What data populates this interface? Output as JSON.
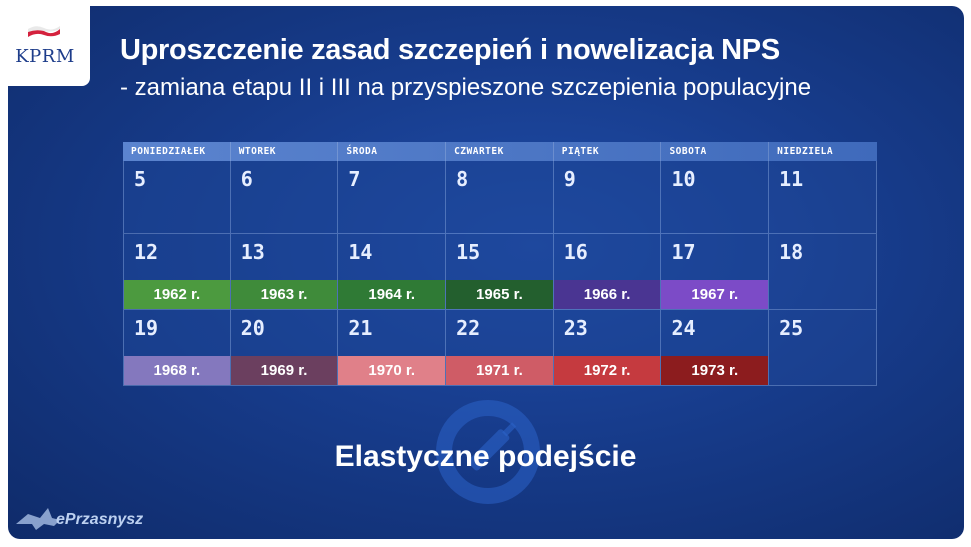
{
  "header": {
    "logo_text": "KPRM",
    "title": "Uproszczenie zasad szczepień i nowelizacja NPS",
    "subtitle": "- zamiana etapu II i III na przyspieszone szczepienia populacyjne"
  },
  "calendar": {
    "weekdays": [
      "PONIEDZIAŁEK",
      "WTOREK",
      "ŚRODA",
      "CZWARTEK",
      "PIĄTEK",
      "SOBOTA",
      "NIEDZIELA"
    ],
    "weeks": [
      {
        "days": [
          "5",
          "6",
          "7",
          "8",
          "9",
          "10",
          "11"
        ]
      },
      {
        "days": [
          "12",
          "13",
          "14",
          "15",
          "16",
          "17",
          "18"
        ],
        "years": [
          "1962 r.",
          "1963 r.",
          "1964 r.",
          "1965 r.",
          "1966 r.",
          "1967 r."
        ]
      },
      {
        "days": [
          "19",
          "20",
          "21",
          "22",
          "23",
          "24",
          "25"
        ],
        "years": [
          "1968 r.",
          "1969 r.",
          "1970 r.",
          "1971 r.",
          "1972 r.",
          "1973 r."
        ]
      }
    ],
    "band_colors": {
      "week2": [
        "#4c9a3f",
        "#3f8b3a",
        "#2f7a35",
        "#235f2e",
        "#4a3592",
        "#7c4bc7"
      ],
      "week3": [
        "#8478be",
        "#6b3f5f",
        "#e08089",
        "#cf5c66",
        "#c53a3f",
        "#8c1c1e"
      ]
    }
  },
  "footer": {
    "slogan": "Elastyczne podejście",
    "watermark_text": "ePrzasnysz"
  },
  "colors": {
    "panel": "#173c8c",
    "header_row": "#5b84cf",
    "logo_blue": "#1d3c8a",
    "flag_red": "#d4213d"
  }
}
